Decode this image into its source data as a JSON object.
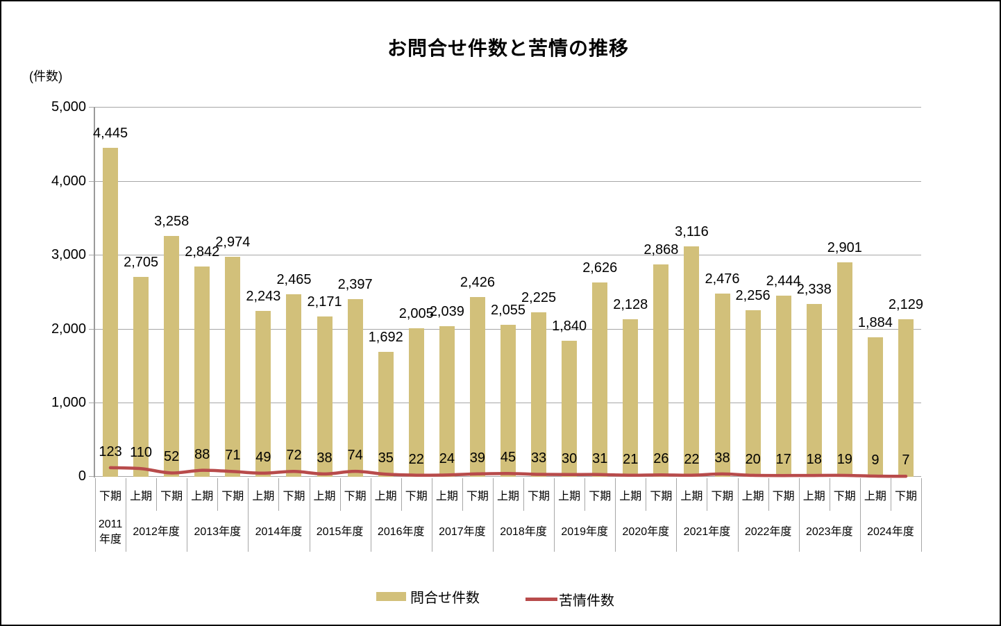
{
  "title": "お問合せ件数と苦情の推移",
  "y_axis_unit_label": "(件数)",
  "legend": {
    "bar_label": "問合せ件数",
    "line_label": "苦情件数"
  },
  "colors": {
    "bar": "#d2c07a",
    "line": "#b84b4b",
    "grid": "#a6a6a6",
    "text": "#000000"
  },
  "chart_data": {
    "type": "bar",
    "title": "お問合せ件数と苦情の推移",
    "ylabel": "(件数)",
    "ylim": [
      0,
      5000
    ],
    "ytick_interval": 1000,
    "ytick_labels": [
      "0",
      "1,000",
      "2,000",
      "3,000",
      "4,000",
      "5,000"
    ],
    "grid": true,
    "legend_position": "bottom",
    "categories": [
      "下期",
      "上期",
      "下期",
      "上期",
      "下期",
      "上期",
      "下期",
      "上期",
      "下期",
      "上期",
      "下期",
      "上期",
      "下期",
      "上期",
      "下期",
      "上期",
      "下期",
      "上期",
      "下期",
      "上期",
      "下期",
      "上期",
      "下期",
      "上期",
      "下期",
      "上期",
      "下期"
    ],
    "year_groups": [
      {
        "label": "2011年度",
        "span": 1
      },
      {
        "label": "2012年度",
        "span": 2
      },
      {
        "label": "2013年度",
        "span": 2
      },
      {
        "label": "2014年度",
        "span": 2
      },
      {
        "label": "2015年度",
        "span": 2
      },
      {
        "label": "2016年度",
        "span": 2
      },
      {
        "label": "2017年度",
        "span": 2
      },
      {
        "label": "2018年度",
        "span": 2
      },
      {
        "label": "2019年度",
        "span": 2
      },
      {
        "label": "2020年度",
        "span": 2
      },
      {
        "label": "2021年度",
        "span": 2
      },
      {
        "label": "2022年度",
        "span": 2
      },
      {
        "label": "2023年度",
        "span": 2
      },
      {
        "label": "2024年度",
        "span": 2
      }
    ],
    "series": [
      {
        "name": "問合せ件数",
        "type": "bar",
        "color": "#d2c07a",
        "values": [
          4445,
          2705,
          3258,
          2842,
          2974,
          2243,
          2465,
          2171,
          2397,
          1692,
          2005,
          2039,
          2426,
          2055,
          2225,
          1840,
          2626,
          2128,
          2868,
          3116,
          2476,
          2256,
          2444,
          2338,
          2901,
          1884,
          2129
        ]
      },
      {
        "name": "苦情件数",
        "type": "line",
        "color": "#b84b4b",
        "values": [
          123,
          110,
          52,
          88,
          71,
          49,
          72,
          38,
          74,
          35,
          22,
          24,
          39,
          45,
          33,
          30,
          31,
          21,
          26,
          22,
          38,
          20,
          17,
          18,
          19,
          9,
          7
        ]
      }
    ]
  }
}
